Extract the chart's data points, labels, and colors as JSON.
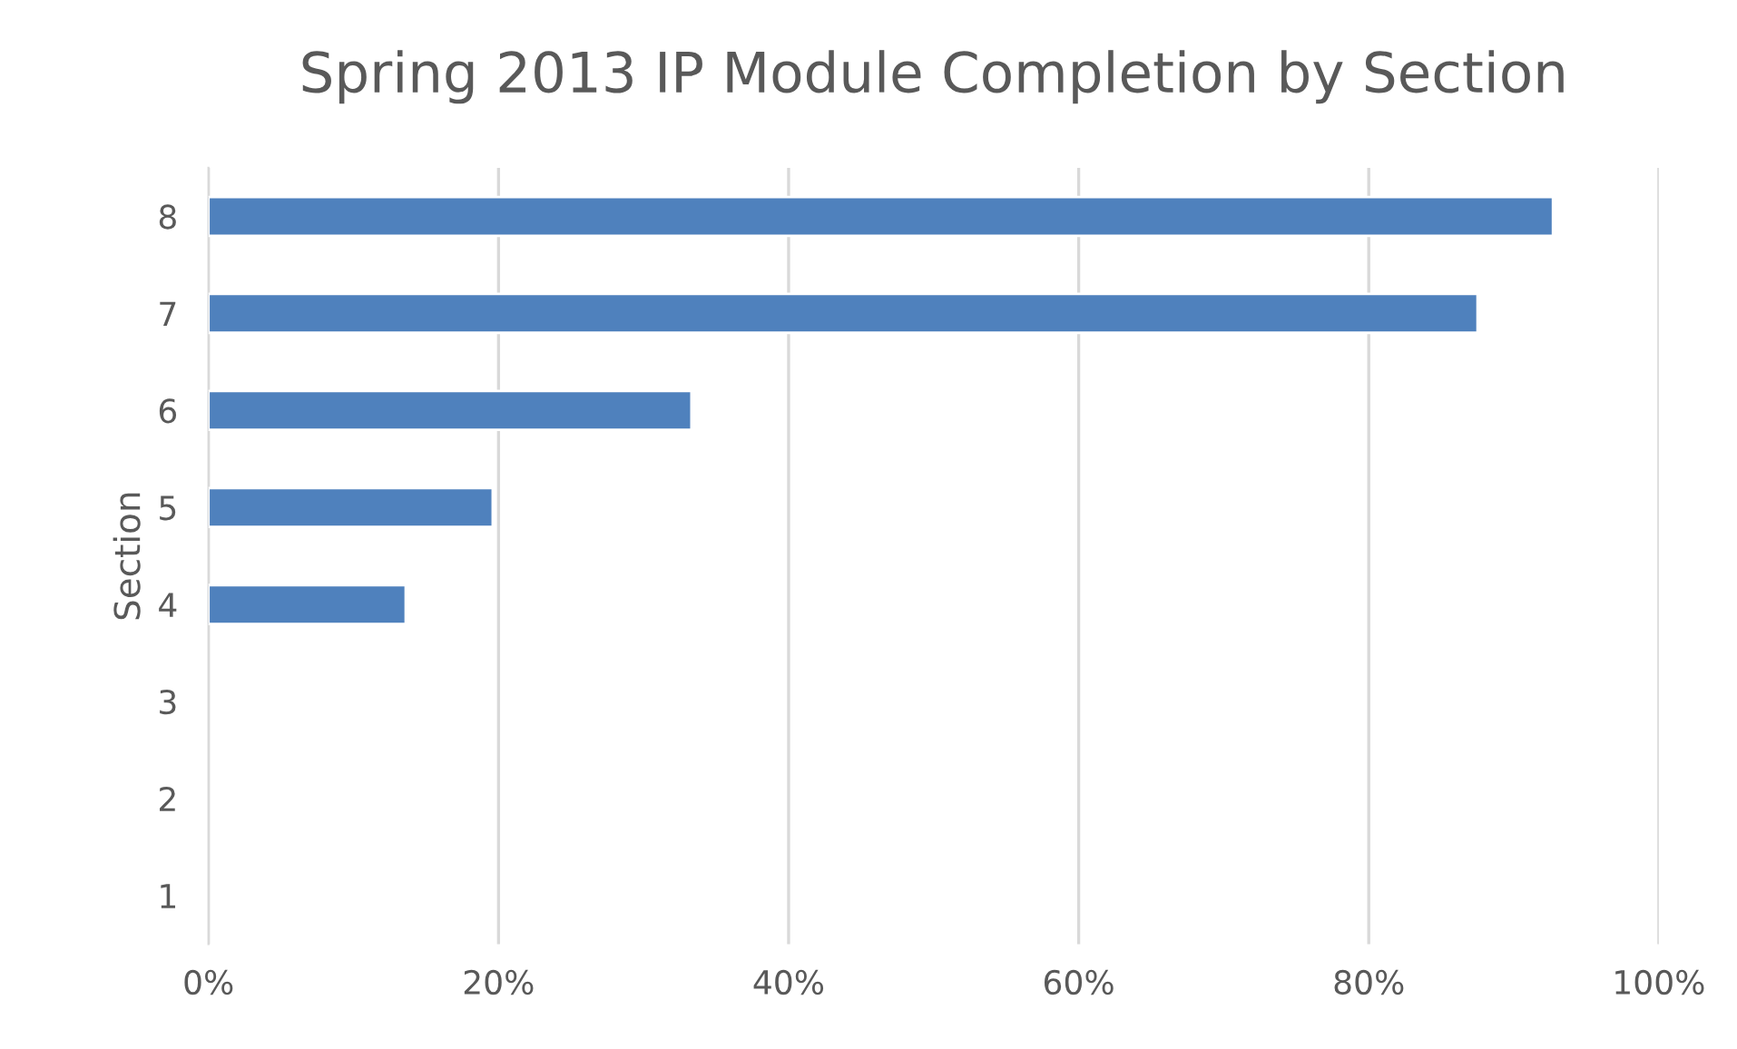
{
  "chart_data": {
    "type": "bar",
    "orientation": "horizontal",
    "title": "Spring 2013 IP Module Completion by Section",
    "ylabel": "Section",
    "categories": [
      "8",
      "7",
      "6",
      "5",
      "4",
      "3",
      "2",
      "1"
    ],
    "values": [
      92.7,
      87.5,
      33.3,
      19.6,
      13.6,
      null,
      null,
      null
    ],
    "color": "#4f81bd",
    "xlim": [
      0,
      100
    ],
    "xticks": [
      {
        "value": 0,
        "label": "0%"
      },
      {
        "value": 20,
        "label": "20%"
      },
      {
        "value": 40,
        "label": "40%"
      },
      {
        "value": 60,
        "label": "60%"
      },
      {
        "value": 80,
        "label": "80%"
      },
      {
        "value": 100,
        "label": "100%"
      }
    ],
    "grid": "x"
  }
}
